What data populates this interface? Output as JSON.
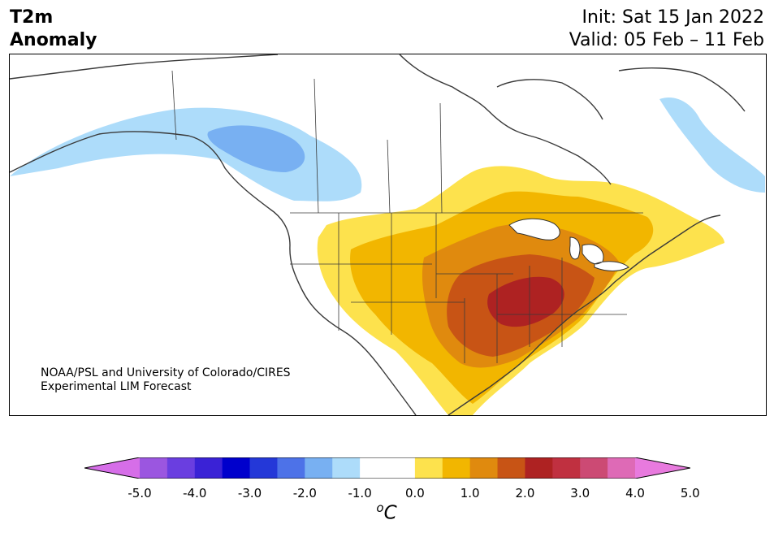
{
  "title": {
    "variable": "T2m",
    "field": "Anomaly",
    "init": "Init: Sat 15 Jan 2022",
    "valid": "Valid: 05 Feb – 11 Feb"
  },
  "credit": {
    "line1": "NOAA/PSL and University of Colorado/CIRES",
    "line2": "Experimental LIM Forecast"
  },
  "colorbar": {
    "colors": [
      "#d66ee8",
      "#9b56e0",
      "#6a3ee0",
      "#3a22d6",
      "#0000cc",
      "#2438d8",
      "#4d72e8",
      "#78b0f2",
      "#addcfa",
      "#ffffff",
      "#ffffff",
      "#fde24d",
      "#f2b600",
      "#e08a0e",
      "#c85415",
      "#ae2222",
      "#c03040",
      "#cc4a74",
      "#de6ab6",
      "#e87ade"
    ],
    "ticks": [
      "-5.0",
      "-4.0",
      "-3.0",
      "-2.0",
      "-1.0",
      "0.0",
      "1.0",
      "2.0",
      "3.0",
      "4.0",
      "5.0"
    ],
    "unit_super": "o",
    "unit": "C",
    "min": -5.0,
    "max": 5.0,
    "step": 0.5
  },
  "anomaly_colors": {
    "cool_1": "#addcfa",
    "cool_2": "#78b0f2",
    "warm_1": "#fde24d",
    "warm_2": "#f2b600",
    "warm_3": "#e08a0e",
    "warm_4": "#c85415",
    "warm_5": "#ae2222"
  }
}
